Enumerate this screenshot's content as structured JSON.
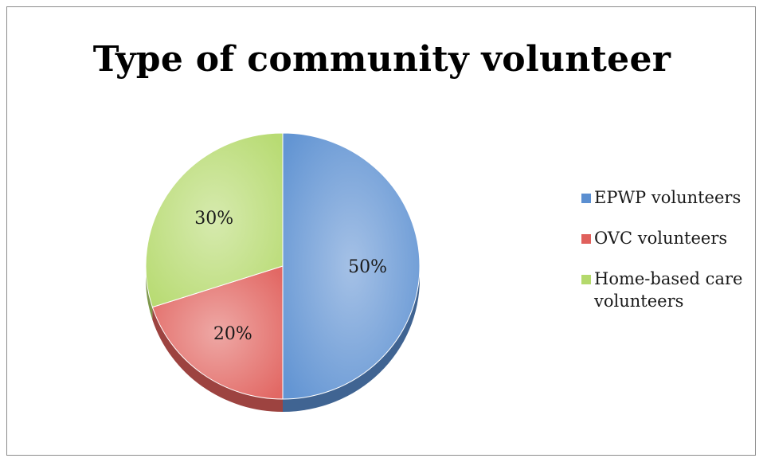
{
  "chart_data": {
    "type": "pie",
    "title": "Type of community volunteer",
    "slices": [
      {
        "name": "EPWP volunteers",
        "value": 50,
        "label": "50%",
        "color": "#5b8fd1"
      },
      {
        "name": "OVC volunteers",
        "value": 20,
        "label": "20%",
        "color": "#e0605c"
      },
      {
        "name": "Home-based care volunteers",
        "value": 30,
        "label": "30%",
        "color": "#b4d96c"
      }
    ],
    "legend_position": "right",
    "grid": false
  }
}
